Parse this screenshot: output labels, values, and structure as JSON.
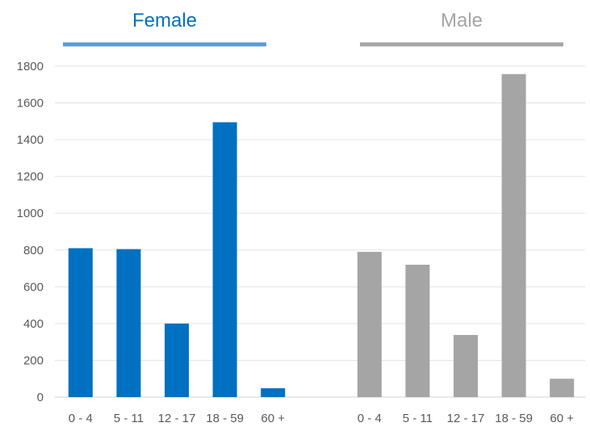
{
  "chart_data": {
    "type": "bar",
    "ylim": [
      0,
      1800
    ],
    "yticks": [
      0,
      200,
      400,
      600,
      800,
      1000,
      1200,
      1400,
      1600,
      1800
    ],
    "grid": true,
    "groups": [
      {
        "name": "Female",
        "color": "#0070C0",
        "header_color": "#5B9BD5",
        "categories": [
          "0 - 4",
          "5 - 11",
          "12 - 17",
          "18 - 59",
          "60 +"
        ],
        "values": [
          810,
          805,
          400,
          1495,
          48
        ]
      },
      {
        "name": "Male",
        "color": "#A5A5A5",
        "header_color": "#A5A5A5",
        "categories": [
          "0 - 4",
          "5 - 11",
          "12 - 17",
          "18 - 59",
          "60 +"
        ],
        "values": [
          790,
          720,
          338,
          1757,
          100
        ]
      }
    ]
  }
}
